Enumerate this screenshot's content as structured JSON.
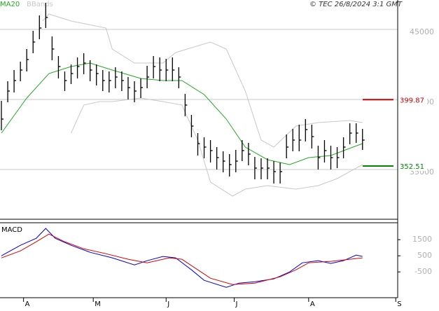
{
  "source": "© TEC 26/8/2024 3:1 GMT",
  "chart_data": [
    {
      "type": "ohlc",
      "xlim": [
        0,
        125
      ],
      "ylim": [
        31450,
        47100
      ],
      "yticks": [
        35000,
        40000,
        45000
      ],
      "grid": true,
      "bars": {
        "color": "#000000",
        "x": [
          0,
          2,
          4,
          6,
          8,
          10,
          12,
          14,
          16,
          18,
          20,
          22,
          24,
          26,
          28,
          30,
          32,
          34,
          36,
          38,
          40,
          42,
          44,
          46,
          48,
          50,
          52,
          54,
          56,
          58,
          60,
          62,
          64,
          66,
          68,
          70,
          72,
          74,
          76,
          78,
          80,
          82,
          84,
          86,
          88,
          90,
          92,
          94,
          96,
          98,
          100,
          102,
          104,
          106,
          108,
          110,
          112,
          114
        ],
        "high": [
          39900,
          41300,
          42100,
          42700,
          43600,
          44900,
          46000,
          46900,
          44500,
          43100,
          42000,
          42500,
          43000,
          43300,
          42800,
          42500,
          42100,
          42000,
          42300,
          42000,
          41600,
          41300,
          41500,
          42400,
          43100,
          43000,
          42900,
          43000,
          42300,
          40400,
          38900,
          37600,
          37300,
          37100,
          36600,
          36300,
          36100,
          36400,
          37100,
          36900,
          35900,
          35800,
          35800,
          35600,
          35500,
          37500,
          37900,
          38200,
          38600,
          38200,
          36700,
          37100,
          36700,
          36600,
          37300,
          38300,
          38300,
          37900
        ],
        "low": [
          37800,
          39800,
          40500,
          41300,
          42000,
          43300,
          44300,
          45100,
          42800,
          41500,
          40600,
          41100,
          41500,
          41800,
          41300,
          41000,
          40600,
          40500,
          40800,
          40600,
          40000,
          39800,
          40100,
          40800,
          41500,
          41300,
          41300,
          41300,
          40800,
          38800,
          37300,
          36000,
          35800,
          35500,
          35000,
          34800,
          34500,
          34800,
          35600,
          35300,
          34300,
          34300,
          34300,
          34000,
          34000,
          35800,
          36300,
          36300,
          37000,
          36500,
          35000,
          35500,
          35000,
          35100,
          35800,
          36800,
          36900,
          36400
        ],
        "close": [
          38600,
          40600,
          41350,
          42100,
          42850,
          44100,
          45100,
          45850,
          43600,
          42350,
          41350,
          41850,
          42350,
          42600,
          42100,
          41850,
          41350,
          41350,
          41600,
          41350,
          40850,
          40600,
          40850,
          41600,
          42350,
          42100,
          42100,
          42100,
          41600,
          39600,
          38100,
          36850,
          36600,
          36350,
          35850,
          35600,
          35350,
          35600,
          36350,
          36100,
          35100,
          35100,
          35100,
          34850,
          34850,
          36600,
          37100,
          37100,
          37850,
          37350,
          35850,
          36350,
          35850,
          35850,
          36600,
          37600,
          37600,
          37100
        ]
      },
      "ma": {
        "name": "MA20",
        "color": "#22aa22",
        "x": [
          0,
          8,
          15,
          22,
          28,
          35,
          44,
          51,
          57,
          64,
          71,
          77,
          84,
          91,
          97,
          104,
          111,
          114
        ],
        "values": [
          37600,
          40100,
          41850,
          42350,
          42600,
          42100,
          41500,
          41350,
          41350,
          40350,
          38600,
          36600,
          35700,
          35350,
          35850,
          36000,
          36600,
          36850
        ]
      },
      "bands": {
        "name": "BBands",
        "color": "#c8c8c8",
        "upper": {
          "x": [
            13,
            15,
            22,
            33,
            35,
            42,
            51,
            55,
            66,
            71,
            77,
            82,
            86,
            93,
            100,
            110,
            114
          ],
          "values": [
            45600,
            46100,
            45600,
            45100,
            43600,
            42600,
            42600,
            43350,
            44100,
            43600,
            40600,
            37100,
            36600,
            38100,
            38350,
            38500,
            38350
          ]
        },
        "lower": {
          "x": [
            22,
            26,
            31,
            35,
            44,
            51,
            57,
            62,
            66,
            73,
            77,
            84,
            93,
            100,
            106,
            114
          ],
          "values": [
            37600,
            39600,
            39850,
            39850,
            40100,
            39850,
            39600,
            37100,
            34100,
            33100,
            33600,
            33850,
            33600,
            33850,
            34350,
            35350
          ]
        }
      },
      "levels": [
        {
          "value": 39987,
          "label": "399.87",
          "color": "#cc0000"
        },
        {
          "value": 35251,
          "label": "352.51",
          "color": "#008800"
        }
      ]
    },
    {
      "type": "line",
      "title": "MACD",
      "xlim": [
        0,
        125
      ],
      "ylim": [
        -2100,
        2550
      ],
      "yticks": [
        -500,
        500,
        1500
      ],
      "xticks": [
        {
          "value": 7,
          "label": "A"
        },
        {
          "value": 29,
          "label": "M"
        },
        {
          "value": 52,
          "label": "J"
        },
        {
          "value": 73.5,
          "label": "J"
        },
        {
          "value": 97,
          "label": "A"
        },
        {
          "value": 124.5,
          "label": "S"
        }
      ],
      "series": [
        {
          "color": "#0000dd",
          "x": [
            0,
            6,
            11,
            14,
            17,
            22,
            28,
            35,
            42,
            46,
            51,
            55,
            60,
            64,
            71,
            75,
            80,
            86,
            91,
            95,
            100,
            104,
            108,
            112,
            114
          ],
          "values": [
            500,
            1152,
            1587,
            2196,
            1587,
            1152,
            717,
            370,
            -65,
            196,
            457,
            370,
            -370,
            -1022,
            -1457,
            -1196,
            -1109,
            -935,
            -500,
            65,
            196,
            22,
            196,
            543,
            457
          ]
        },
        {
          "color": "#dd0000",
          "x": [
            0,
            6,
            11,
            15,
            20,
            26,
            33,
            40,
            46,
            53,
            57,
            62,
            66,
            73,
            80,
            88,
            93,
            97,
            104,
            114
          ],
          "values": [
            370,
            804,
            1370,
            1848,
            1370,
            935,
            630,
            283,
            65,
            370,
            283,
            -370,
            -891,
            -1283,
            -1196,
            -804,
            -370,
            65,
            152,
            370
          ]
        }
      ]
    }
  ]
}
